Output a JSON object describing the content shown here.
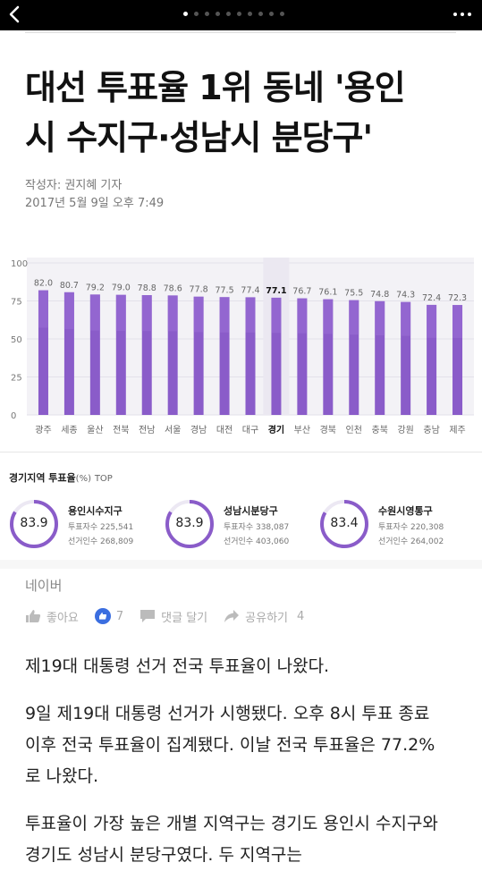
{
  "topbar": {
    "back_icon": "chevron-left-icon",
    "page_dots": 10,
    "active_dot": 0,
    "more_icon": "more-dots-icon"
  },
  "article": {
    "headline_line1": "대선 투표율 1위 동네 '용인",
    "headline_line2": "시 수지구·성남시 분당구'",
    "author": "작성자: 권지혜 기자",
    "datetime": "2017년 5월 9일 오후 7:49"
  },
  "chart_data": {
    "type": "bar",
    "categories": [
      "광주",
      "세종",
      "울산",
      "전북",
      "전남",
      "서울",
      "경남",
      "대전",
      "대구",
      "경기",
      "부산",
      "경북",
      "인천",
      "충북",
      "강원",
      "충남",
      "제주"
    ],
    "values": [
      82.0,
      80.7,
      79.2,
      79.0,
      78.8,
      78.6,
      77.8,
      77.5,
      77.4,
      77.1,
      76.7,
      76.1,
      75.5,
      74.8,
      74.3,
      72.4,
      72.3
    ],
    "value_labels": [
      "82.0",
      "80.7",
      "79.2",
      "79.0",
      "78.8",
      "78.6",
      "77.8",
      "77.5",
      "77.4",
      "77.1",
      "76.7",
      "76.1",
      "75.5",
      "74.8",
      "74.3",
      "72.4",
      "72.3"
    ],
    "highlight": "경기",
    "yticks": [
      "0",
      "25",
      "50",
      "75",
      "100"
    ],
    "ylim": [
      0,
      100
    ],
    "title": "",
    "xlabel": "",
    "ylabel": "",
    "colors": {
      "bar_top": "#9b6fd6",
      "bar_bottom": "#8a5cc9",
      "bg": "#f3f2f6"
    }
  },
  "region": {
    "title": "경기지역 투표율",
    "title_unit": "(%)",
    "title_suffix": "TOP",
    "cards": [
      {
        "name": "용인시수지구",
        "value": "83.9",
        "votes": "투표자수  225,541",
        "voters": "선거인수  268,809"
      },
      {
        "name": "성남시분당구",
        "value": "83.9",
        "votes": "투표자수  338,087",
        "voters": "선거인수  403,060"
      },
      {
        "name": "수원시영통구",
        "value": "83.4",
        "votes": "투표자수  220,308",
        "voters": "선거인수  264,002"
      }
    ]
  },
  "source": "네이버",
  "actions": {
    "like_label": "좋아요",
    "like_count": "7",
    "comment_label": "댓글 달기",
    "share_label": "공유하기",
    "share_count": "4"
  },
  "body": {
    "p1": "제19대 대통령 선거 전국 투표율이 나왔다.",
    "p2": "9일 제19대 대통령 선거가 시행됐다. 오후 8시 투표 종료 이후 전국 투표율이 집계됐다. 이날 전국 투표율은 77.2%로 나왔다.",
    "p3": "투표율이 가장 높은 개별 지역구는 경기도 용인시 수지구와 경기도 성남시 분당구였다. 두 지역구는"
  }
}
